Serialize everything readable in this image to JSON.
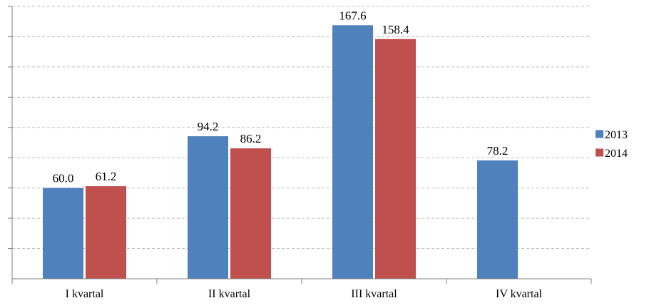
{
  "chart_data": {
    "type": "bar",
    "categories": [
      "I kvartal",
      "II kvartal",
      "III  kvartal",
      "IV kvartal"
    ],
    "series": [
      {
        "name": "2013",
        "values": [
          60.0,
          94.2,
          167.6,
          78.2
        ],
        "labels": [
          "60.0",
          "94.2",
          "167.6",
          "78.2"
        ],
        "color": "#4F81BD"
      },
      {
        "name": "2014",
        "values": [
          61.2,
          86.2,
          158.4,
          null
        ],
        "labels": [
          "61.2",
          "86.2",
          "158.4",
          ""
        ],
        "color": "#C0504D"
      }
    ],
    "ylim": [
      0,
      180
    ],
    "ytick_step": 20,
    "grid": true,
    "legend": "right",
    "title": "",
    "xlabel": "",
    "ylabel": ""
  }
}
